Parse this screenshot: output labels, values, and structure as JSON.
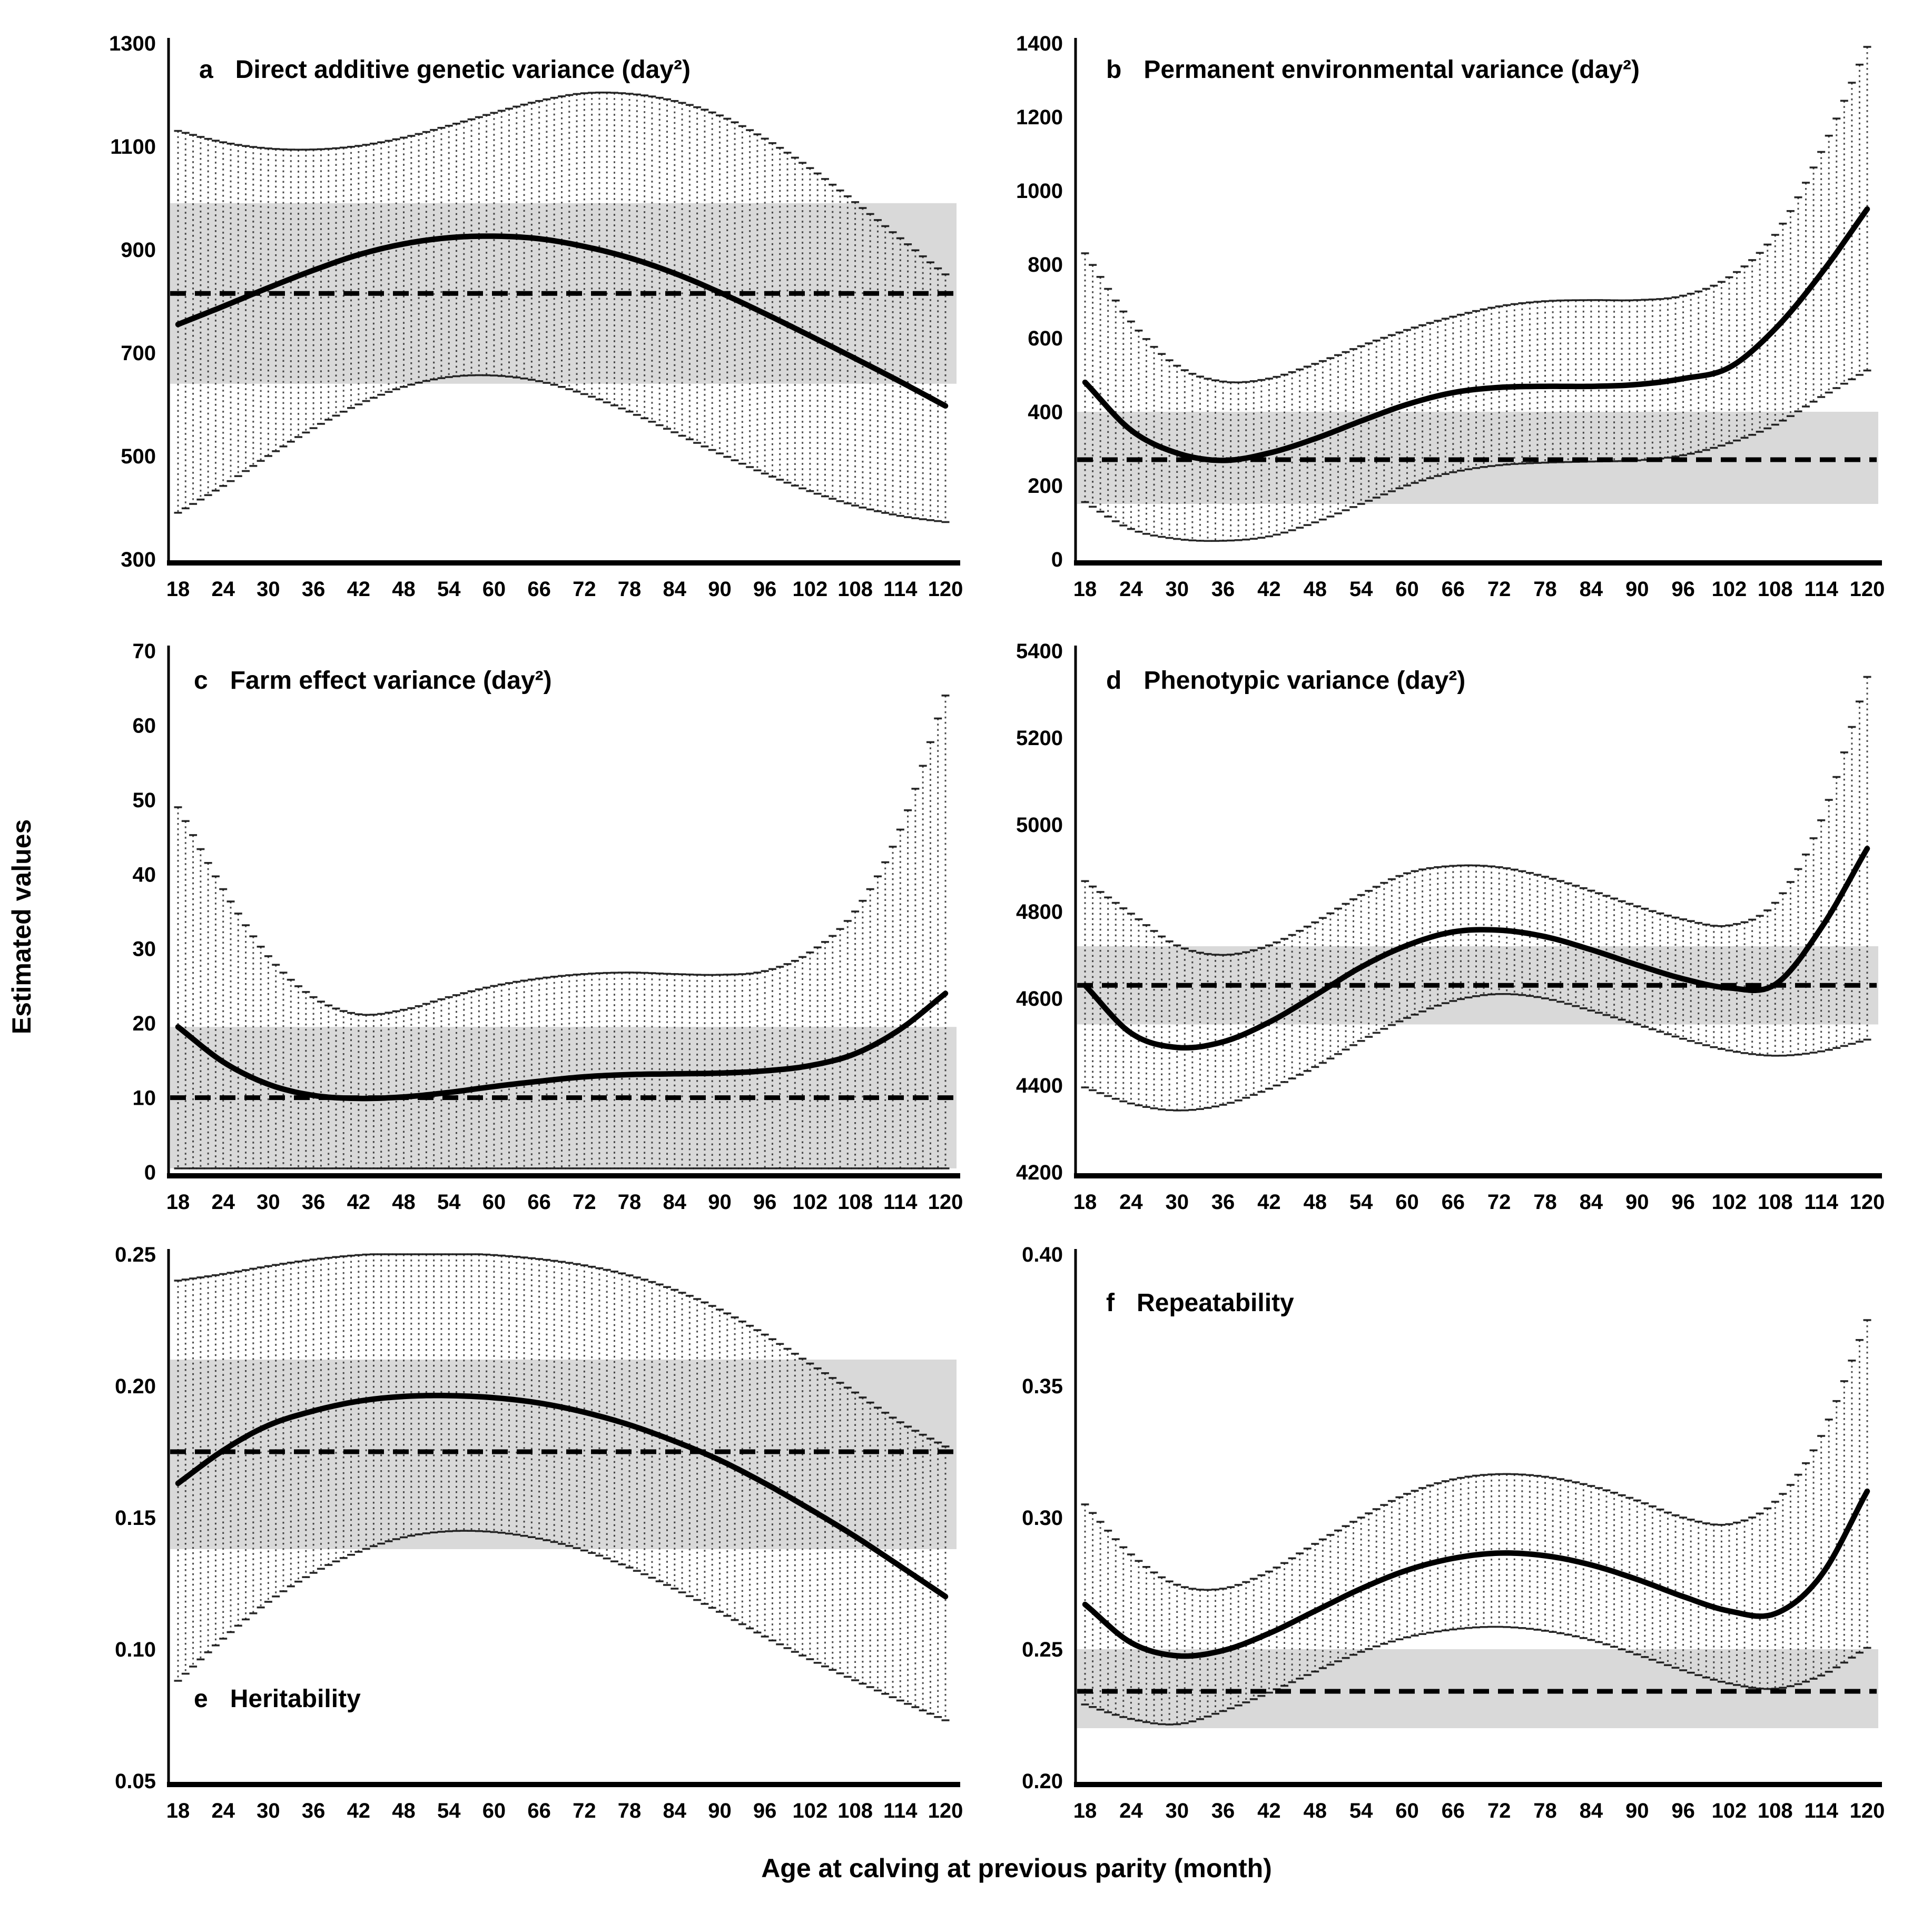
{
  "figure": {
    "ylabel": "Estimated values",
    "xlabel": "Age at calving at previous parity (month)"
  },
  "chart_data": [
    {
      "type": "line",
      "label": "a",
      "title": "Direct additive genetic variance (day²)",
      "title_position": "top-left",
      "x": [
        18,
        24,
        30,
        36,
        42,
        48,
        54,
        60,
        66,
        72,
        78,
        84,
        90,
        96,
        102,
        108,
        114,
        120
      ],
      "mean": [
        755,
        790,
        826,
        860,
        890,
        911,
        923,
        926,
        921,
        906,
        884,
        854,
        817,
        776,
        733,
        689,
        644,
        597
      ],
      "upper": [
        1130,
        1108,
        1096,
        1094,
        1101,
        1117,
        1140,
        1165,
        1188,
        1203,
        1202,
        1188,
        1160,
        1115,
        1058,
        992,
        922,
        852
      ],
      "lower": [
        390,
        442,
        500,
        554,
        600,
        634,
        653,
        656,
        645,
        620,
        586,
        546,
        505,
        466,
        432,
        404,
        384,
        372
      ],
      "overall_mean": 815,
      "overall_band": [
        640,
        990
      ],
      "ylim": [
        300,
        1300
      ],
      "yticks": [
        300,
        500,
        700,
        900,
        1100,
        1300
      ],
      "ytick_labels": [
        "300",
        "500",
        "700",
        "900",
        "1100",
        "1300"
      ],
      "error_bar_step_months": 1,
      "legend": "solid curve = estimate, vertical dotted bars = 95% CI, dashed line = overall estimate, gray band = overall CI"
    },
    {
      "type": "line",
      "label": "b",
      "title": "Permanent environmental variance (day²)",
      "title_position": "top-left",
      "x": [
        18,
        24,
        30,
        36,
        42,
        48,
        54,
        60,
        66,
        72,
        78,
        84,
        90,
        96,
        102,
        108,
        114,
        120
      ],
      "mean": [
        480,
        350,
        288,
        268,
        288,
        327,
        375,
        420,
        452,
        466,
        469,
        469,
        474,
        490,
        520,
        625,
        775,
        950
      ],
      "upper": [
        830,
        645,
        525,
        482,
        490,
        530,
        578,
        622,
        658,
        686,
        700,
        703,
        703,
        715,
        765,
        880,
        1105,
        1390
      ],
      "lower": [
        155,
        82,
        55,
        50,
        62,
        100,
        150,
        200,
        236,
        255,
        262,
        265,
        268,
        282,
        315,
        365,
        440,
        512
      ],
      "overall_mean": 270,
      "overall_band": [
        150,
        400
      ],
      "ylim": [
        0,
        1400
      ],
      "yticks": [
        0,
        200,
        400,
        600,
        800,
        1000,
        1200,
        1400
      ],
      "ytick_labels": [
        "0",
        "200",
        "400",
        "600",
        "800",
        "1000",
        "1200",
        "1400"
      ],
      "error_bar_step_months": 1,
      "legend": "solid curve = estimate, vertical dotted bars = 95% CI, dashed line = overall estimate, gray band = overall CI"
    },
    {
      "type": "line",
      "label": "c",
      "title": "Farm effect variance (day²)",
      "title_position": "top-left",
      "x": [
        18,
        24,
        30,
        36,
        42,
        48,
        54,
        60,
        66,
        72,
        78,
        84,
        90,
        96,
        102,
        108,
        114,
        120
      ],
      "mean": [
        19.5,
        14.8,
        11.8,
        10.3,
        9.9,
        10.1,
        10.7,
        11.5,
        12.2,
        12.8,
        13.1,
        13.2,
        13.3,
        13.6,
        14.3,
        15.9,
        19.2,
        24.0
      ],
      "upper": [
        49,
        38,
        29,
        23.5,
        21.2,
        21.8,
        23.5,
        25.0,
        26.0,
        26.6,
        26.8,
        26.6,
        26.5,
        27.0,
        29.5,
        35,
        46,
        64
      ],
      "lower": [
        0.5,
        0.5,
        0.5,
        0.5,
        0.5,
        0.5,
        0.5,
        0.5,
        0.5,
        0.5,
        0.5,
        0.5,
        0.5,
        0.5,
        0.5,
        0.5,
        0.5,
        0.5
      ],
      "overall_mean": 10,
      "overall_band": [
        0.5,
        19.5
      ],
      "ylim": [
        0,
        70
      ],
      "yticks": [
        0,
        10,
        20,
        30,
        40,
        50,
        60,
        70
      ],
      "ytick_labels": [
        "0",
        "10",
        "20",
        "30",
        "40",
        "50",
        "60",
        "70"
      ],
      "error_bar_step_months": 1,
      "legend": "solid curve = estimate, vertical dotted bars = 95% CI, dashed line = overall estimate, gray band = overall CI"
    },
    {
      "type": "line",
      "label": "d",
      "title": "Phenotypic variance (day²)",
      "title_position": "top-left",
      "x": [
        18,
        24,
        30,
        36,
        42,
        48,
        54,
        60,
        66,
        72,
        78,
        84,
        90,
        96,
        102,
        108,
        114,
        120
      ],
      "mean": [
        4630,
        4520,
        4487,
        4500,
        4545,
        4607,
        4672,
        4722,
        4753,
        4757,
        4742,
        4712,
        4677,
        4645,
        4624,
        4632,
        4762,
        4945
      ],
      "upper": [
        4870,
        4795,
        4722,
        4700,
        4722,
        4775,
        4838,
        4888,
        4905,
        4902,
        4880,
        4848,
        4812,
        4782,
        4768,
        4820,
        5010,
        5340
      ],
      "lower": [
        4395,
        4358,
        4342,
        4355,
        4392,
        4442,
        4502,
        4555,
        4594,
        4610,
        4600,
        4572,
        4540,
        4507,
        4480,
        4468,
        4478,
        4505
      ],
      "overall_mean": 4630,
      "overall_band": [
        4540,
        4720
      ],
      "ylim": [
        4200,
        5400
      ],
      "yticks": [
        4200,
        4400,
        4600,
        4800,
        5000,
        5200,
        5400
      ],
      "ytick_labels": [
        "4200",
        "4400",
        "4600",
        "4800",
        "5000",
        "5200",
        "5400"
      ],
      "error_bar_step_months": 1,
      "legend": "solid curve = estimate, vertical dotted bars = 95% CI, dashed line = overall estimate, gray band = overall CI"
    },
    {
      "type": "line",
      "label": "e",
      "title": "Heritability",
      "title_position": "bottom-left",
      "x": [
        18,
        24,
        30,
        36,
        42,
        48,
        54,
        60,
        66,
        72,
        78,
        84,
        90,
        96,
        102,
        108,
        114,
        120
      ],
      "mean": [
        0.163,
        0.1755,
        0.185,
        0.1905,
        0.1942,
        0.196,
        0.1963,
        0.1955,
        0.1935,
        0.19,
        0.1852,
        0.179,
        0.1718,
        0.163,
        0.1532,
        0.1428,
        0.1315,
        0.12
      ],
      "upper": [
        0.24,
        0.2425,
        0.2455,
        0.248,
        0.2497,
        0.2505,
        0.2505,
        0.2497,
        0.2482,
        0.2458,
        0.242,
        0.2365,
        0.229,
        0.2195,
        0.2085,
        0.1975,
        0.1862,
        0.177
      ],
      "lower": [
        0.088,
        0.104,
        0.118,
        0.129,
        0.137,
        0.1425,
        0.1448,
        0.1445,
        0.142,
        0.1375,
        0.131,
        0.123,
        0.1142,
        0.1048,
        0.0962,
        0.0882,
        0.0805,
        0.073
      ],
      "overall_mean": 0.175,
      "overall_band": [
        0.138,
        0.21
      ],
      "ylim": [
        0.05,
        0.25
      ],
      "yticks": [
        0.05,
        0.1,
        0.15,
        0.2,
        0.25
      ],
      "ytick_labels": [
        "0.05",
        "0.10",
        "0.15",
        "0.20",
        "0.25"
      ],
      "error_bar_step_months": 1,
      "legend": "solid curve = estimate, vertical dotted bars = 95% CI, dashed line = overall estimate, gray band = overall CI"
    },
    {
      "type": "line",
      "label": "f",
      "title": "Repeatability",
      "title_position": "top-left",
      "x": [
        18,
        24,
        30,
        36,
        42,
        48,
        54,
        60,
        66,
        72,
        78,
        84,
        90,
        96,
        102,
        108,
        114,
        120
      ],
      "mean": [
        0.267,
        0.2525,
        0.2475,
        0.2495,
        0.256,
        0.2645,
        0.273,
        0.28,
        0.2845,
        0.2865,
        0.2855,
        0.282,
        0.2765,
        0.27,
        0.2645,
        0.2635,
        0.278,
        0.31
      ],
      "upper": [
        0.305,
        0.286,
        0.2745,
        0.273,
        0.2795,
        0.29,
        0.3,
        0.309,
        0.3145,
        0.3165,
        0.3155,
        0.312,
        0.3065,
        0.3,
        0.2975,
        0.306,
        0.331,
        0.375
      ],
      "lower": [
        0.229,
        0.2235,
        0.2215,
        0.2265,
        0.2335,
        0.2415,
        0.249,
        0.2545,
        0.2575,
        0.2585,
        0.257,
        0.2535,
        0.248,
        0.242,
        0.237,
        0.235,
        0.24,
        0.2505
      ],
      "overall_mean": 0.234,
      "overall_band": [
        0.22,
        0.25
      ],
      "ylim": [
        0.2,
        0.4
      ],
      "yticks": [
        0.2,
        0.25,
        0.3,
        0.35,
        0.4
      ],
      "ytick_labels": [
        "0.20",
        "0.25",
        "0.30",
        "0.35",
        "0.40"
      ],
      "error_bar_step_months": 1,
      "legend": "solid curve = estimate, vertical dotted bars = 95% CI, dashed line = overall estimate, gray band = overall CI"
    }
  ]
}
